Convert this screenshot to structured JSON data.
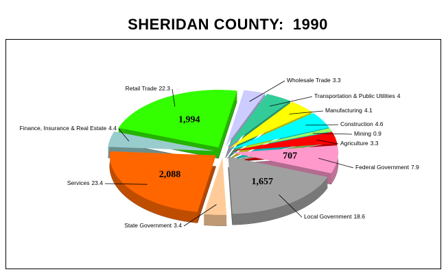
{
  "chart_data": {
    "type": "pie",
    "title": "SHERIDAN COUNTY:  1990",
    "categories": [
      "Wholesale Trade",
      "Transportation & Public Utilities",
      "Manufacturing",
      "Construction",
      "Mining",
      "Agriculture",
      "Federal Government",
      "Local Government",
      "State Government",
      "Services",
      "Finance, Insurance & Real Estate",
      "Retail Trade"
    ],
    "values": [
      3.3,
      4.0,
      4.1,
      4.6,
      0.9,
      3.3,
      7.9,
      18.6,
      3.4,
      23.4,
      4.4,
      22.3
    ],
    "colors": [
      "#ccccff",
      "#33cc99",
      "#ffff00",
      "#00ffff",
      "#99ff66",
      "#ff0000",
      "#ff99cc",
      "#a0a0a0",
      "#ffcc99",
      "#ff6600",
      "#99cccc",
      "#33ff00"
    ],
    "employment": {
      "values": [
        null,
        null,
        null,
        null,
        null,
        null,
        707,
        1657,
        null,
        2088,
        null,
        1994
      ],
      "value_labels": [
        null,
        null,
        null,
        null,
        null,
        null,
        "707",
        "1,657",
        null,
        "2,088",
        null,
        "1,994"
      ]
    }
  }
}
